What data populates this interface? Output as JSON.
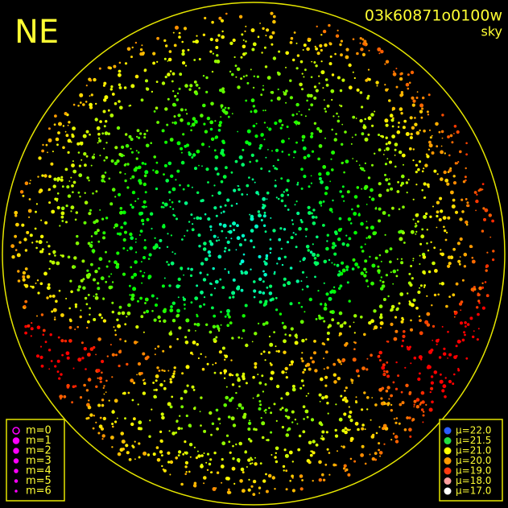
{
  "header": {
    "corner": "NE",
    "exposure": "03k60871o0100w",
    "filter": "sky"
  },
  "magnitude_legend": {
    "color": "#ff00ff",
    "items": [
      "m=0",
      "m=1",
      "m=2",
      "m=3",
      "m=4",
      "m=5",
      "m=6"
    ]
  },
  "brightness_legend": {
    "items": [
      {
        "label": "μ=22.0",
        "color": "#2a5cff"
      },
      {
        "label": "μ=21.5",
        "color": "#22e040"
      },
      {
        "label": "μ=21.0",
        "color": "#ffff00"
      },
      {
        "label": "μ=20.0",
        "color": "#ff9a00"
      },
      {
        "label": "μ=19.0",
        "color": "#ff3a10"
      },
      {
        "label": "μ=18.0",
        "color": "#ff9f9f"
      },
      {
        "label": "μ=17.0",
        "color": "#ffffff"
      }
    ]
  }
}
